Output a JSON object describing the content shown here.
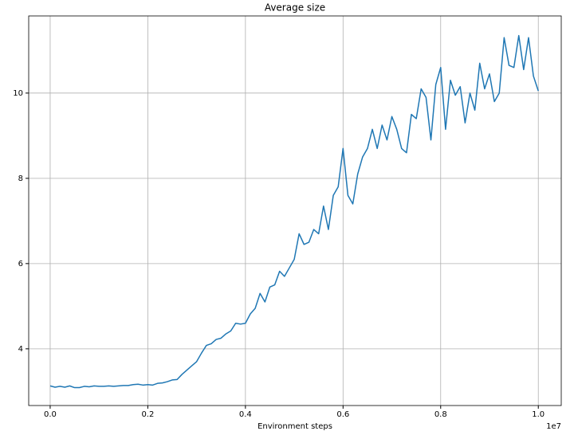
{
  "chart_data": {
    "type": "line",
    "title": "Average size",
    "x_label": "Environment steps",
    "x_offset_label": "1e7",
    "x": [
      0.0,
      0.01,
      0.02,
      0.03,
      0.04,
      0.05,
      0.06,
      0.07,
      0.08,
      0.09,
      0.1,
      0.11,
      0.12,
      0.13,
      0.14,
      0.15,
      0.16,
      0.17,
      0.18,
      0.19,
      0.2,
      0.21,
      0.22,
      0.23,
      0.24,
      0.25,
      0.26,
      0.27,
      0.28,
      0.29,
      0.3,
      0.31,
      0.32,
      0.33,
      0.34,
      0.35,
      0.36,
      0.37,
      0.38,
      0.39,
      0.4,
      0.41,
      0.42,
      0.43,
      0.44,
      0.45,
      0.46,
      0.47,
      0.48,
      0.49,
      0.5,
      0.51,
      0.52,
      0.53,
      0.54,
      0.55,
      0.56,
      0.57,
      0.58,
      0.59,
      0.6,
      0.61,
      0.62,
      0.63,
      0.64,
      0.65,
      0.66,
      0.67,
      0.68,
      0.69,
      0.7,
      0.71,
      0.72,
      0.73,
      0.74,
      0.75,
      0.76,
      0.77,
      0.78,
      0.79,
      0.8,
      0.81,
      0.82,
      0.83,
      0.84,
      0.85,
      0.86,
      0.87,
      0.88,
      0.89,
      0.9,
      0.91,
      0.92,
      0.93,
      0.94,
      0.95,
      0.96,
      0.97,
      0.98,
      0.99,
      1.0
    ],
    "series": [
      {
        "name": "Average size",
        "color": "#1f77b4",
        "values": [
          3.13,
          3.1,
          3.12,
          3.1,
          3.13,
          3.09,
          3.09,
          3.12,
          3.11,
          3.13,
          3.12,
          3.12,
          3.13,
          3.12,
          3.13,
          3.14,
          3.14,
          3.16,
          3.17,
          3.15,
          3.16,
          3.15,
          3.19,
          3.2,
          3.23,
          3.27,
          3.28,
          3.4,
          3.5,
          3.6,
          3.7,
          3.9,
          4.08,
          4.12,
          4.22,
          4.25,
          4.35,
          4.42,
          4.6,
          4.58,
          4.6,
          4.82,
          4.95,
          5.3,
          5.1,
          5.45,
          5.5,
          5.82,
          5.7,
          5.9,
          6.1,
          6.7,
          6.45,
          6.5,
          6.8,
          6.7,
          7.35,
          6.8,
          7.6,
          7.8,
          8.7,
          7.6,
          7.4,
          8.1,
          8.5,
          8.7,
          9.15,
          8.7,
          9.25,
          8.9,
          9.45,
          9.15,
          8.7,
          8.6,
          9.5,
          9.4,
          10.1,
          9.9,
          8.9,
          10.2,
          10.6,
          9.15,
          10.3,
          9.95,
          10.15,
          9.3,
          10.0,
          9.6,
          10.7,
          10.1,
          10.45,
          9.8,
          10.0,
          11.3,
          10.65,
          10.6,
          11.35,
          10.55,
          11.3,
          10.4,
          10.05
        ]
      }
    ],
    "xlim": [
      -0.044,
      1.047
    ],
    "ylim": [
      2.67,
      11.81
    ],
    "xticks": [
      {
        "value": 0,
        "label": "0.0"
      },
      0.2,
      0.4,
      0.6,
      0.8,
      {
        "value": 1,
        "label": "1.0"
      }
    ],
    "yticks": [
      4,
      6,
      8,
      10
    ],
    "grid": true
  }
}
